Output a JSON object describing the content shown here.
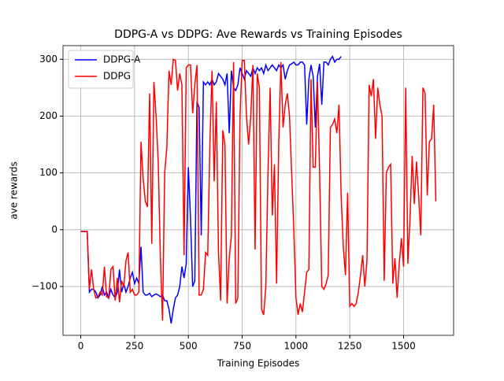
{
  "chart_data": {
    "type": "line",
    "title": "DDPG-A vs DDPG: Ave Rewards vs Training Episodes",
    "xlabel": "Training Episodes",
    "ylabel": "ave rewards",
    "x": [
      0,
      10,
      20,
      30,
      40,
      50,
      60,
      70,
      80,
      90,
      100,
      110,
      120,
      130,
      140,
      150,
      160,
      170,
      180,
      190,
      200,
      210,
      220,
      230,
      240,
      250,
      260,
      270,
      280,
      290,
      300,
      310,
      320,
      330,
      340,
      350,
      360,
      370,
      380,
      390,
      400,
      410,
      420,
      430,
      440,
      450,
      460,
      470,
      480,
      490,
      500,
      510,
      520,
      530,
      540,
      550,
      560,
      570,
      580,
      590,
      600,
      610,
      620,
      630,
      640,
      650,
      660,
      670,
      680,
      690,
      700,
      710,
      720,
      730,
      740,
      750,
      760,
      770,
      780,
      790,
      800,
      810,
      820,
      830,
      840,
      850,
      860,
      870,
      880,
      890,
      900,
      910,
      920,
      930,
      940,
      950,
      960,
      970,
      980,
      990,
      1000,
      1010,
      1020,
      1030,
      1040,
      1050,
      1060,
      1070,
      1080,
      1090,
      1100,
      1110,
      1120,
      1130,
      1140,
      1150,
      1160,
      1170,
      1180,
      1190,
      1200,
      1210,
      1220,
      1230,
      1240,
      1250,
      1260,
      1270,
      1280,
      1290,
      1300,
      1310,
      1320,
      1330,
      1340,
      1350,
      1360,
      1370,
      1380,
      1390,
      1400,
      1410,
      1420,
      1430,
      1440,
      1450,
      1460,
      1470,
      1480,
      1490,
      1500,
      1510,
      1520,
      1530,
      1540,
      1550,
      1560,
      1570,
      1580,
      1590,
      1600,
      1610,
      1620,
      1630,
      1640,
      1650
    ],
    "series": [
      {
        "name": "DDPG-A",
        "color": "#0000ff",
        "values": [
          -3,
          -3,
          -3,
          -3,
          -110,
          -105,
          -105,
          -110,
          -120,
          -115,
          -100,
          -115,
          -110,
          -120,
          -105,
          -115,
          -120,
          -110,
          -70,
          -110,
          -95,
          -110,
          -100,
          -85,
          -75,
          -95,
          -85,
          -95,
          -30,
          -110,
          -115,
          -115,
          -112,
          -118,
          -115,
          -113,
          -115,
          -118,
          -115,
          -125,
          -125,
          -140,
          -165,
          -140,
          -120,
          -115,
          -100,
          -65,
          -85,
          -60,
          110,
          20,
          -100,
          -90,
          225,
          215,
          -10,
          260,
          255,
          260,
          255,
          265,
          255,
          260,
          275,
          270,
          265,
          255,
          275,
          170,
          280,
          250,
          245,
          255,
          285,
          275,
          265,
          280,
          275,
          270,
          285,
          275,
          285,
          280,
          285,
          275,
          290,
          280,
          285,
          290,
          285,
          280,
          290,
          285,
          290,
          265,
          280,
          290,
          292,
          295,
          290,
          290,
          295,
          295,
          290,
          185,
          265,
          290,
          270,
          180,
          270,
          292,
          220,
          295,
          295,
          290,
          300,
          305,
          295,
          300,
          300,
          305,
          null,
          null,
          null,
          null,
          null,
          null,
          null,
          null,
          null,
          null,
          null,
          null,
          null,
          null,
          null,
          null,
          null,
          null,
          null,
          null,
          null,
          null,
          null,
          null,
          null,
          null,
          null,
          null,
          null,
          null,
          null,
          null,
          null,
          null,
          null,
          null,
          null,
          null,
          null,
          null,
          null,
          null,
          null,
          null
        ]
      },
      {
        "name": "DDPG",
        "color": "#ff0000",
        "values": [
          -3,
          -3,
          -3,
          -3,
          -105,
          -70,
          -105,
          -120,
          -118,
          -110,
          -115,
          -65,
          -118,
          -120,
          -70,
          -65,
          -125,
          -85,
          -128,
          -90,
          -100,
          -55,
          -40,
          -110,
          -105,
          -115,
          -115,
          -110,
          155,
          90,
          50,
          40,
          240,
          -25,
          260,
          200,
          120,
          -50,
          -160,
          100,
          145,
          280,
          255,
          300,
          298,
          245,
          275,
          255,
          -45,
          285,
          290,
          290,
          205,
          255,
          290,
          -115,
          -115,
          -105,
          -40,
          -45,
          150,
          280,
          85,
          225,
          -40,
          -125,
          175,
          150,
          -130,
          -50,
          -10,
          295,
          -130,
          -120,
          200,
          298,
          298,
          200,
          150,
          200,
          290,
          -35,
          275,
          250,
          -140,
          -150,
          -100,
          100,
          250,
          25,
          115,
          -95,
          150,
          295,
          180,
          220,
          240,
          200,
          100,
          0,
          -120,
          -150,
          -130,
          -145,
          -110,
          -75,
          -70,
          265,
          110,
          110,
          260,
          100,
          -100,
          -105,
          -95,
          -80,
          180,
          185,
          195,
          170,
          220,
          60,
          -30,
          -80,
          65,
          -135,
          -130,
          -135,
          -130,
          -110,
          -80,
          -45,
          -100,
          -55,
          255,
          235,
          265,
          160,
          250,
          220,
          200,
          -90,
          100,
          110,
          115,
          -95,
          -50,
          -120,
          -60,
          -15,
          -65,
          250,
          -60,
          20,
          130,
          45,
          120,
          60,
          -10,
          250,
          240,
          60,
          155,
          160,
          220,
          50
        ]
      }
    ],
    "xlim": [
      -82.5,
      1732.5
    ],
    "ylim": [
      -186,
      324
    ],
    "xticks": [
      0,
      250,
      500,
      750,
      1000,
      1250,
      1500
    ],
    "yticks": [
      {
        "value": -100,
        "label": "−100"
      },
      0,
      100,
      200,
      300
    ],
    "grid": true,
    "legend": "upper left"
  }
}
